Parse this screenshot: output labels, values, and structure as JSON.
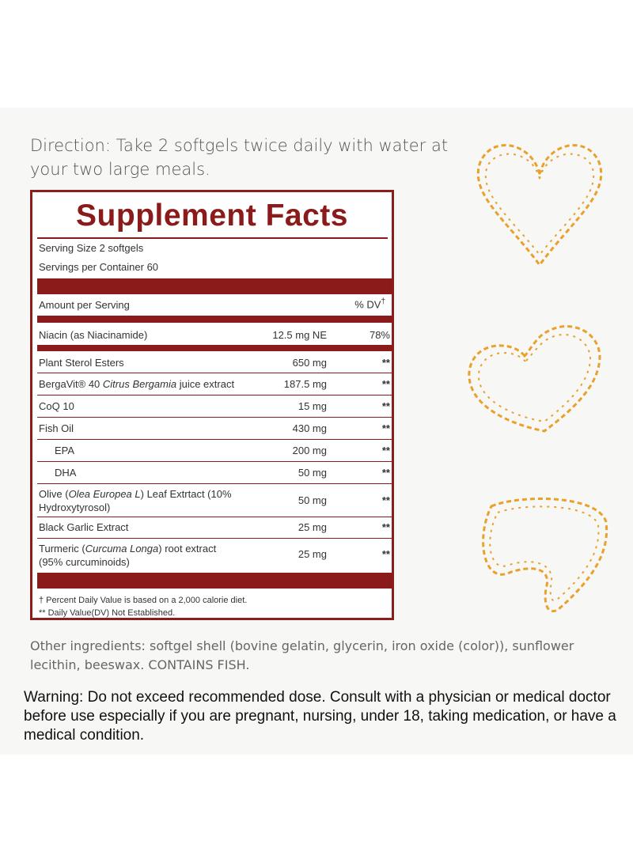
{
  "direction": "Direction: Take 2 softgels twice daily with water at your two large meals.",
  "facts": {
    "title": "Supplement Facts",
    "serving_size": "Serving Size 2 softgels",
    "servings_per_container": "Servings per Container 60",
    "amount_header": "Amount per Serving",
    "dv_header": "% DV",
    "dv_mark": "†",
    "niacin": {
      "name": "Niacin (as Niacinamide)",
      "amount": "12.5 mg NE",
      "dv": "78%"
    },
    "rows": [
      {
        "name": "Plant Sterol Esters",
        "amount": "650 mg",
        "dv": "**"
      },
      {
        "name_pre": "BergaVit® 40 ",
        "name_italic": "Citrus Bergamia",
        "name_post": " juice extract",
        "amount": "187.5 mg",
        "dv": "**"
      },
      {
        "name": "CoQ 10",
        "amount": "15 mg",
        "dv": "**"
      },
      {
        "name": "Fish Oil",
        "amount": "430 mg",
        "dv": "**"
      },
      {
        "name": "EPA",
        "amount": "200 mg",
        "dv": "**"
      },
      {
        "name": "DHA",
        "amount": "50 mg",
        "dv": "**"
      },
      {
        "name_pre": "Olive (",
        "name_italic": "Olea Europea L",
        "name_post": ") Leaf Extrtact (10%",
        "name_line2": "Hydroxytyrosol)",
        "amount": "50 mg",
        "dv": "**"
      },
      {
        "name": "Black Garlic Extract",
        "amount": "25 mg",
        "dv": "**"
      },
      {
        "name_pre": "Turmeric (",
        "name_italic": "Curcuma Longa",
        "name_post": ") root extract",
        "name_line2": "(95% curcuminoids)",
        "amount": "25 mg",
        "dv": "**"
      }
    ],
    "footnote_dv": "† Percent Daily Value is based on a 2,000 calorie diet.",
    "footnote_na": "** Daily Value(DV) Not Established."
  },
  "other_ingredients": "Other ingredients: softgel shell (bovine gelatin, glycerin, iron oxide (color)), sunflower lecithin, beeswax. CONTAINS FISH.",
  "warning": "Warning: Do not exceed recommended dose. Consult with a physician or medical doctor before use especially if you are pregnant, nursing, under 18, taking medication, or have a medical condition.",
  "colors": {
    "brand_red": "#8b1a1a",
    "heart_orange": "#e9a12b",
    "panel_bg": "#f7f7f6"
  },
  "icons": [
    "heart-loop-icon",
    "heart-loop-icon",
    "heart-loop-icon"
  ]
}
